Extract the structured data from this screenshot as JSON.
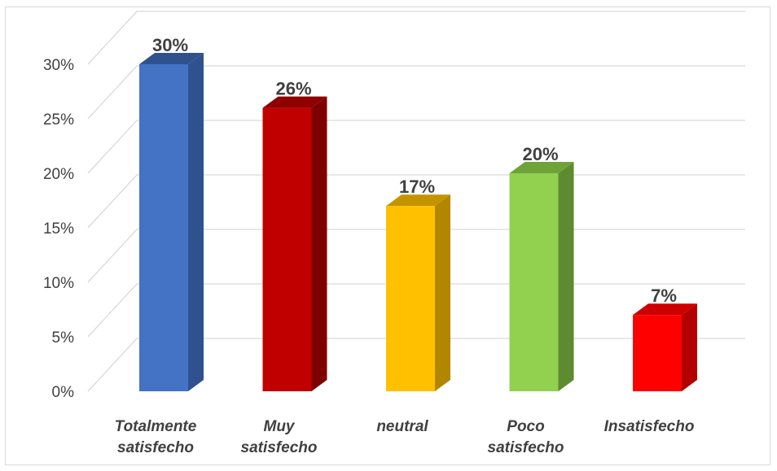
{
  "chart_data": {
    "type": "bar",
    "style": "3d-column",
    "categories": [
      [
        "Totalmente",
        "satisfecho"
      ],
      [
        "Muy",
        "satisfecho"
      ],
      [
        "neutral"
      ],
      [
        "Poco",
        "satisfecho"
      ],
      [
        "Insatisfecho"
      ]
    ],
    "values": [
      30,
      26,
      17,
      20,
      7
    ],
    "data_labels": [
      "30%",
      "26%",
      "17%",
      "20%",
      "7%"
    ],
    "colors": [
      {
        "front": "#4472c4",
        "side": "#2f528f",
        "top": "#2f528f"
      },
      {
        "front": "#c00000",
        "side": "#7f0000",
        "top": "#900000"
      },
      {
        "front": "#ffc000",
        "side": "#b38600",
        "top": "#c49400"
      },
      {
        "front": "#92d050",
        "side": "#5e8a30",
        "top": "#6fa33a"
      },
      {
        "front": "#ff0000",
        "side": "#b30000",
        "top": "#cc0000"
      }
    ],
    "ylim": [
      0,
      30
    ],
    "yticks": [
      0,
      5,
      10,
      15,
      20,
      25,
      30
    ],
    "ytick_labels": [
      "0%",
      "5%",
      "10%",
      "15%",
      "20%",
      "25%",
      "30%"
    ],
    "grid": true,
    "legend": "none",
    "title": "",
    "xlabel": "",
    "ylabel": ""
  }
}
